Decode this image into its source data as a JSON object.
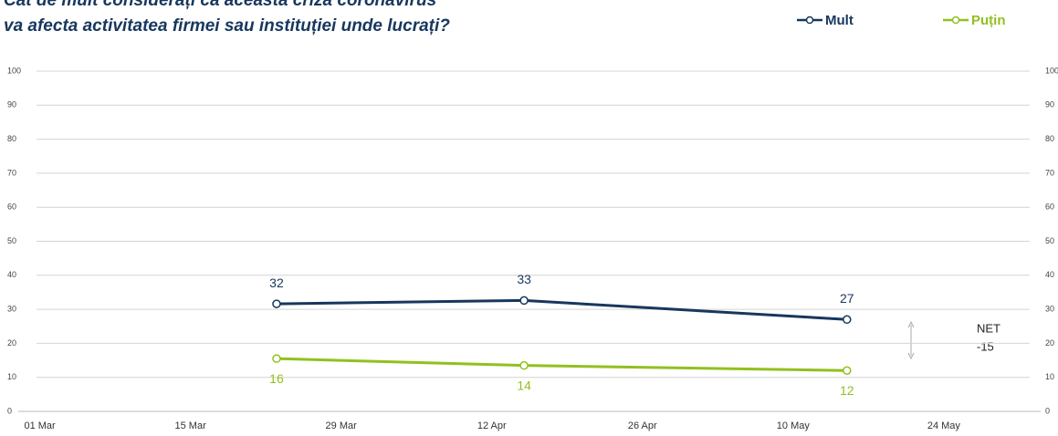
{
  "chart_data": {
    "type": "line",
    "title": [
      "Cât de mult considerați că această criză coronavirus",
      "va afecta activitatea firmei sau instituției unde lucrați?"
    ],
    "x": [
      "23 Mar",
      "15 Apr",
      "15 May"
    ],
    "series": [
      {
        "name": "Mult",
        "color": "#17375e",
        "values": [
          31.6,
          32.6,
          27
        ],
        "value_labels": [
          "32",
          "33",
          "27"
        ]
      },
      {
        "name": "Puțin",
        "color": "#92c01f",
        "values": [
          15.5,
          13.5,
          12
        ],
        "value_labels": [
          "16",
          "14",
          "12"
        ]
      }
    ],
    "xlim": [
      "28 Feb",
      "02 Jun"
    ],
    "xticks": [
      "01 Mar",
      "15 Mar",
      "29 Mar",
      "12 Apr",
      "26 Apr",
      "10 May",
      "24 May"
    ],
    "ylim": [
      0,
      100
    ],
    "yticks": [
      0,
      10,
      20,
      30,
      40,
      50,
      60,
      70,
      80,
      90,
      100
    ],
    "y2lim": [
      0,
      100
    ],
    "y2ticks": [
      0,
      10,
      20,
      30,
      40,
      50,
      60,
      70,
      80,
      90,
      100
    ],
    "grid": true,
    "legend": "top-right",
    "annotations": [
      "NET",
      "-15"
    ]
  }
}
